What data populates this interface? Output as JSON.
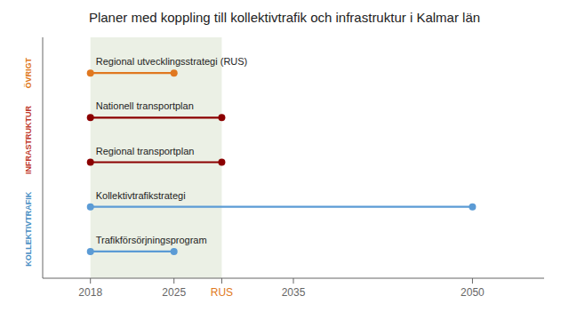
{
  "chart_data": {
    "type": "timeline",
    "title": "Planer med koppling till kollektivtrafik och infrastruktur i Kalmar län",
    "categories": [
      "Regional utvecklingsstrategi (RUS)",
      "Nationell transportplan",
      "Regional transportplan",
      "Kollektivtrafikstrategi",
      "Trafikförsörjningsprogram"
    ],
    "start": [
      2018,
      2018,
      2018,
      2018,
      2018
    ],
    "end": [
      2025,
      2029,
      2029,
      2050,
      2025
    ],
    "colors": [
      "#e07820",
      "#8b0000",
      "#8b0000",
      "#5b9bd5",
      "#5b9bd5"
    ],
    "group": [
      "ÖVRIGT",
      "INFRASTRUKTUR",
      "INFRASTRUKTUR",
      "KOLLEKTIVTRAFIK",
      "KOLLEKTIVTRAFIK"
    ],
    "group_colors": {
      "ÖVRIGT": "#e07820",
      "INFRASTRUKTUR": "#c0392b",
      "KOLLEKTIVTRAFIK": "#4a90c4"
    },
    "xlim": [
      2014,
      2056
    ],
    "xticks": [
      2018,
      2025,
      2035,
      2050
    ],
    "annotations": [
      {
        "text": "RUS",
        "x": 2029,
        "color": "#e07820"
      }
    ],
    "highlight": {
      "x": [
        2018,
        2029
      ],
      "color": "#e8ede0"
    },
    "grid": false
  }
}
